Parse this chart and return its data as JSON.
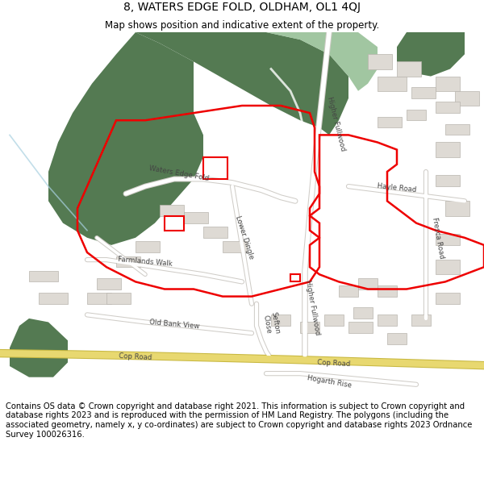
{
  "title": "8, WATERS EDGE FOLD, OLDHAM, OL1 4QJ",
  "subtitle": "Map shows position and indicative extent of the property.",
  "footer": "Contains OS data © Crown copyright and database right 2021. This information is subject to Crown copyright and database rights 2023 and is reproduced with the permission of HM Land Registry. The polygons (including the associated geometry, namely x, y co-ordinates) are subject to Crown copyright and database rights 2023 Ordnance Survey 100026316.",
  "bg_color": "#ffffff",
  "map_bg": "#f0eeeb",
  "green_dark": "#547a52",
  "green_light": "#8ab88a",
  "road_white": "#ffffff",
  "road_gray": "#d0cdc8",
  "yellow_road_fill": "#e8d870",
  "yellow_road_edge": "#c8b840",
  "red_line": "#ee0000",
  "building_fill": "#dedad4",
  "building_edge": "#b8b4ae",
  "title_fontsize": 10,
  "subtitle_fontsize": 8.5,
  "footer_fontsize": 7.2,
  "label_fontsize": 6.2
}
